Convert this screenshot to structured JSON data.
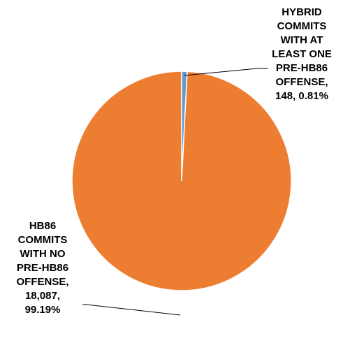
{
  "chart_data": {
    "type": "pie",
    "title": "",
    "slices": [
      {
        "label_lines": [
          "HYBRID",
          "COMMITS",
          "WITH AT",
          "LEAST ONE",
          "PRE-HB86",
          "OFFENSE,",
          "148, 0.81%"
        ],
        "value": 148,
        "percent": 0.81,
        "color": "#5B9BD5"
      },
      {
        "label_lines": [
          "HB86",
          "COMMITS",
          "WITH NO",
          "PRE-HB86",
          "OFFENSE,",
          "18,087,",
          "99.19%"
        ],
        "value": 18087,
        "percent": 99.19,
        "color": "#ED7D31"
      }
    ]
  }
}
